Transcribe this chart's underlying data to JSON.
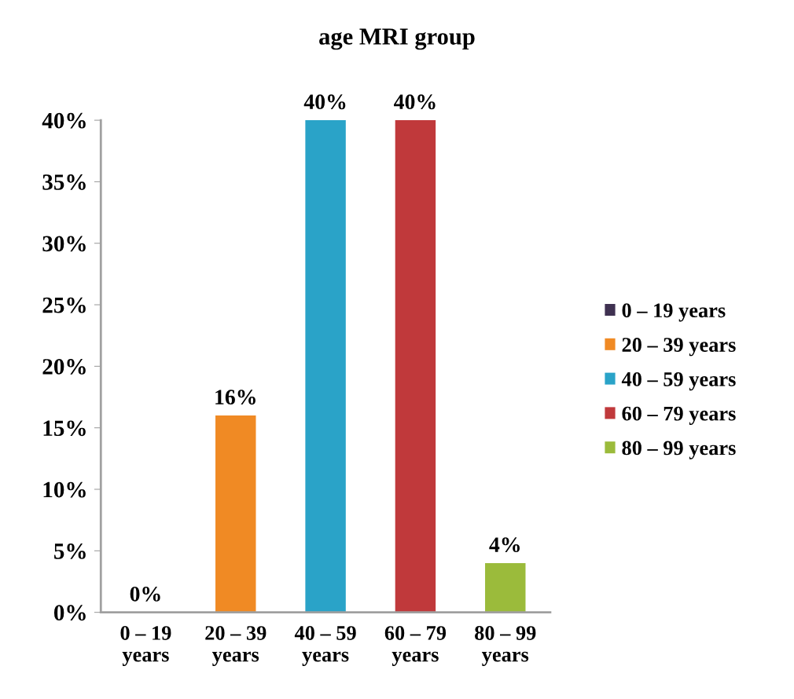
{
  "chart_data": {
    "type": "bar",
    "title": "age MRI group",
    "categories": [
      "0 – 19 years",
      "20 – 39 years",
      "40 – 59 years",
      "60 – 79 years",
      "80 – 99 years"
    ],
    "series": [
      {
        "name": "0 – 19 years",
        "color": "#3f3151",
        "values": [
          0,
          null,
          null,
          null,
          null
        ],
        "value_labels": [
          "0%",
          null,
          null,
          null,
          null
        ]
      },
      {
        "name": "20 – 39 years",
        "color": "#f08a24",
        "values": [
          null,
          16,
          null,
          null,
          null
        ],
        "value_labels": [
          null,
          "16%",
          null,
          null,
          null
        ]
      },
      {
        "name": "40 – 59 years",
        "color": "#2aa3c8",
        "values": [
          null,
          null,
          40,
          null,
          null
        ],
        "value_labels": [
          null,
          null,
          "40%",
          null,
          null
        ]
      },
      {
        "name": "60 – 79 years",
        "color": "#c0393b",
        "values": [
          null,
          null,
          null,
          40,
          null
        ],
        "value_labels": [
          null,
          null,
          null,
          "40%",
          null
        ]
      },
      {
        "name": "80 – 99 years",
        "color": "#9bbb3b",
        "values": [
          null,
          null,
          null,
          null,
          4
        ],
        "value_labels": [
          null,
          null,
          null,
          null,
          "4%"
        ]
      }
    ],
    "ylim": [
      0,
      40
    ],
    "yticks": [
      {
        "value": 0,
        "label": "0%"
      },
      {
        "value": 5,
        "label": "5%"
      },
      {
        "value": 10,
        "label": "10%"
      },
      {
        "value": 15,
        "label": "15%"
      },
      {
        "value": 20,
        "label": "20%"
      },
      {
        "value": 25,
        "label": "25%"
      },
      {
        "value": 30,
        "label": "30%"
      },
      {
        "value": 35,
        "label": "35%"
      },
      {
        "value": 40,
        "label": "40%"
      }
    ],
    "grid": false,
    "legend": "right"
  }
}
